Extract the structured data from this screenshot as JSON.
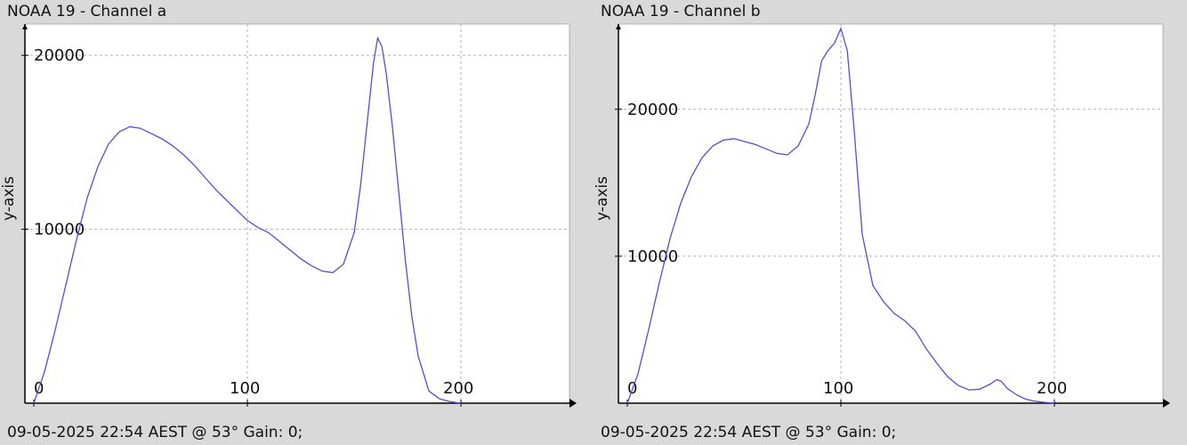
{
  "panels": [
    {
      "title": "NOAA 19 - Channel a",
      "footer": "09-05-2025 22:54 AEST @ 53° Gain: 0;",
      "ylabel": "y-axis"
    },
    {
      "title": "NOAA 19 - Channel b",
      "footer": "09-05-2025 22:54 AEST @ 53° Gain: 0;",
      "ylabel": "y-axis"
    }
  ],
  "colors": {
    "line": "#5050d0",
    "grid": "#b0b0b0",
    "axis": "#000000",
    "background": "#ffffff"
  },
  "chart_data": [
    {
      "type": "line",
      "title": "NOAA 19 - Channel a",
      "ylabel": "y-axis",
      "xlabel": "",
      "xlim": [
        0,
        250
      ],
      "ylim": [
        0,
        21800
      ],
      "xticks": [
        0,
        100,
        200
      ],
      "yticks": [
        10000,
        20000
      ],
      "grid": true,
      "series": [
        {
          "x": [
            0,
            5,
            10,
            15,
            20,
            25,
            30,
            35,
            40,
            45,
            50,
            55,
            60,
            65,
            70,
            75,
            80,
            85,
            90,
            95,
            100,
            105,
            110,
            115,
            120,
            125,
            130,
            135,
            140,
            145,
            150,
            153,
            156,
            159,
            161,
            163,
            165,
            168,
            171,
            174,
            177,
            180,
            185,
            190,
            195,
            200
          ],
          "y": [
            0,
            1800,
            4200,
            6800,
            9400,
            11800,
            13600,
            14900,
            15600,
            15900,
            15800,
            15500,
            15200,
            14800,
            14300,
            13700,
            13000,
            12300,
            11700,
            11100,
            10500,
            10100,
            9800,
            9300,
            8800,
            8300,
            7900,
            7600,
            7500,
            8000,
            9800,
            12500,
            16000,
            19500,
            21000,
            20500,
            19000,
            15800,
            12000,
            8200,
            5000,
            2700,
            700,
            250,
            80,
            0
          ]
        }
      ]
    },
    {
      "type": "line",
      "title": "NOAA 19 - Channel b",
      "ylabel": "y-axis",
      "xlabel": "",
      "xlim": [
        0,
        250
      ],
      "ylim": [
        0,
        25800
      ],
      "xticks": [
        0,
        100,
        200
      ],
      "yticks": [
        10000,
        20000
      ],
      "grid": true,
      "series": [
        {
          "x": [
            0,
            5,
            10,
            15,
            20,
            25,
            30,
            35,
            40,
            45,
            50,
            55,
            60,
            65,
            70,
            75,
            80,
            85,
            88,
            91,
            94,
            97,
            100,
            103,
            106,
            110,
            115,
            120,
            125,
            130,
            135,
            140,
            145,
            150,
            155,
            160,
            165,
            170,
            173,
            175,
            178,
            182,
            186,
            190,
            195,
            200
          ],
          "y": [
            0,
            2000,
            5000,
            8200,
            11200,
            13600,
            15400,
            16700,
            17500,
            17900,
            18000,
            17800,
            17600,
            17300,
            17000,
            16900,
            17500,
            19000,
            21000,
            23300,
            24000,
            24500,
            25500,
            24000,
            19000,
            11500,
            8000,
            6900,
            6100,
            5600,
            4900,
            3700,
            2700,
            1800,
            1200,
            900,
            950,
            1300,
            1600,
            1500,
            1000,
            600,
            300,
            150,
            60,
            0
          ]
        }
      ]
    }
  ]
}
